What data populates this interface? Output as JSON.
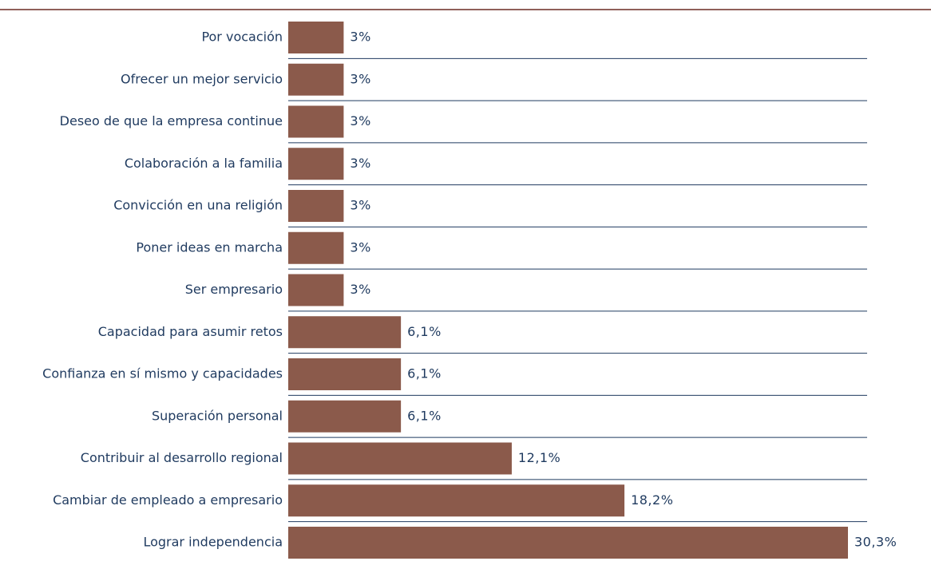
{
  "chart_data": {
    "type": "bar",
    "orientation": "horizontal",
    "title": "",
    "xlabel": "",
    "ylabel": "",
    "xlim": [
      0,
      30.3
    ],
    "grid": false,
    "legend": "none",
    "categories": [
      "Por vocación",
      "Ofrecer un mejor servicio",
      "Deseo de que la empresa continue",
      "Colaboración a la familia",
      "Convicción en una religión",
      "Poner ideas en marcha",
      "Ser empresario",
      "Capacidad para asumir retos",
      "Confianza en sí mismo y capacidades",
      "Superación personal",
      "Contribuir al desarrollo regional",
      "Cambiar de empleado a empresario",
      "Lograr independencia"
    ],
    "values": [
      3,
      3,
      3,
      3,
      3,
      3,
      3,
      6.1,
      6.1,
      6.1,
      12.1,
      18.2,
      30.3
    ],
    "value_labels": [
      "3%",
      "3%",
      "3%",
      "3%",
      "3%",
      "3%",
      "3%",
      "6,1%",
      "6,1%",
      "6,1%",
      "12,1%",
      "18,2%",
      "30,3%"
    ],
    "colors": {
      "bar": "#8b5a4b",
      "top_rule": "#6b2a22",
      "row_divider": "#1f3a5f",
      "text": "#1f3a5f"
    }
  }
}
